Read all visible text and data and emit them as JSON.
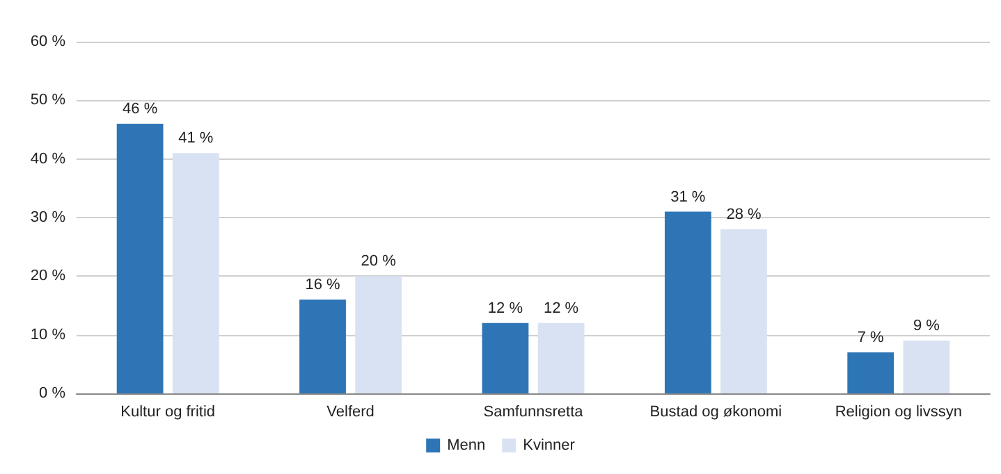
{
  "chart_data": {
    "type": "bar",
    "categories": [
      "Kultur og fritid",
      "Velferd",
      "Samfunnsretta",
      "Bustad og økonomi",
      "Religion og livssyn"
    ],
    "series": [
      {
        "name": "Menn",
        "color": "#2e75b6",
        "values": [
          46,
          16,
          12,
          31,
          7
        ],
        "value_labels": [
          "46 %",
          "16 %",
          "12 %",
          "31 %",
          "7 %"
        ]
      },
      {
        "name": "Kvinner",
        "color": "#d9e2f3",
        "values": [
          41,
          20,
          12,
          28,
          9
        ],
        "value_labels": [
          "41 %",
          "20 %",
          "12 %",
          "28 %",
          "9 %"
        ]
      }
    ],
    "ylim": [
      0,
      60
    ],
    "yticks": [
      {
        "value": 0,
        "label": "0 %"
      },
      {
        "value": 10,
        "label": "10 %"
      },
      {
        "value": 20,
        "label": "20 %"
      },
      {
        "value": 30,
        "label": "30 %"
      },
      {
        "value": 40,
        "label": "40 %"
      },
      {
        "value": 50,
        "label": "50 %"
      },
      {
        "value": 60,
        "label": "60 %"
      }
    ],
    "grid": "y",
    "legend": "bottom"
  }
}
